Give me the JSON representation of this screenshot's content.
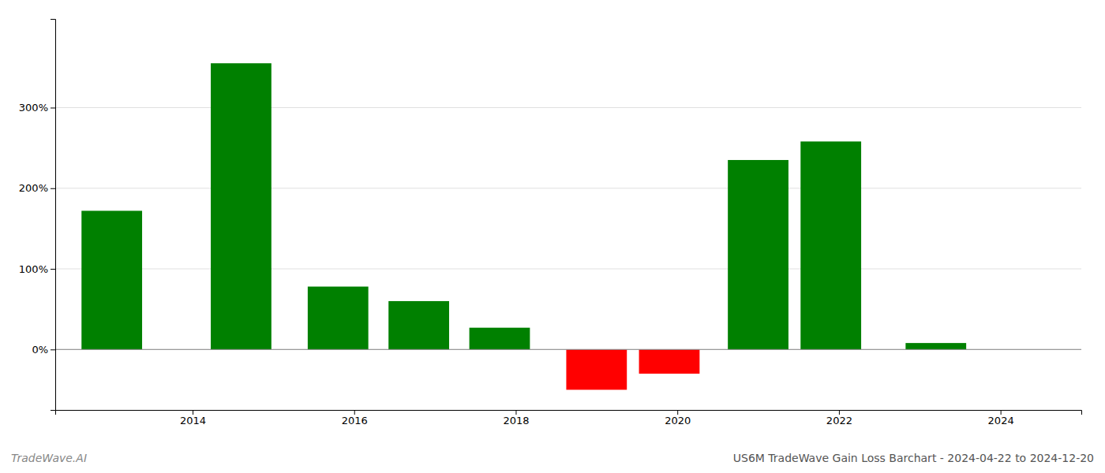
{
  "chart_data": {
    "type": "bar",
    "title": "US6M TradeWave Gain Loss Barchart - 2024-04-22 to 2024-12-20",
    "annotations": [
      "TradeWave.AI"
    ],
    "x": [
      2013,
      2014.6,
      2015.8,
      2016.8,
      2017.8,
      2019.0,
      2019.9,
      2021.0,
      2021.9,
      2023.2
    ],
    "values": [
      1.72,
      3.55,
      0.78,
      0.6,
      0.27,
      -0.5,
      -0.3,
      2.35,
      2.58,
      0.08
    ],
    "colors": [
      "#008000",
      "#008000",
      "#008000",
      "#008000",
      "#008000",
      "#ff0000",
      "#ff0000",
      "#008000",
      "#008000",
      "#008000"
    ],
    "xlim": [
      2012.3,
      2025.0
    ],
    "ylim": [
      -0.75,
      4.1
    ],
    "xticks": [
      2014,
      2016,
      2018,
      2020,
      2022,
      2024
    ],
    "yticks": [
      {
        "value": 0.0,
        "label": "0%"
      },
      {
        "value": 1.0,
        "label": "100%"
      },
      {
        "value": 2.0,
        "label": "200%"
      },
      {
        "value": 3.0,
        "label": "300%"
      }
    ],
    "grid": true
  }
}
